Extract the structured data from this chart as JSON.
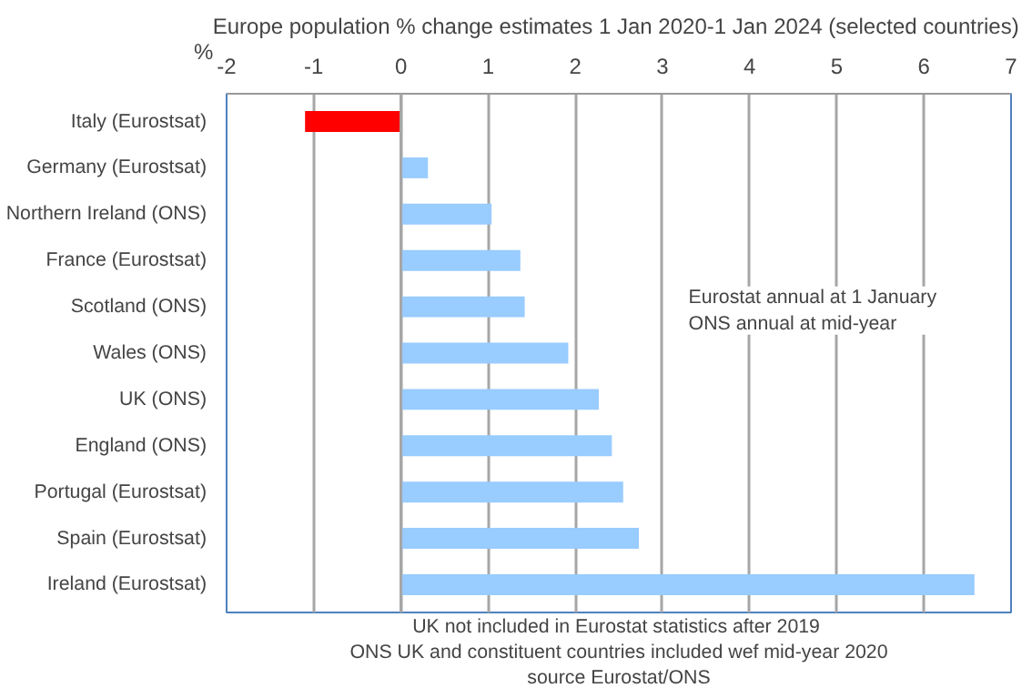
{
  "chart_data": {
    "type": "bar",
    "orientation": "horizontal",
    "title": "Europe population % change estimates 1 Jan 2020-1 Jan 2024  (selected countries)",
    "xlabel": "%",
    "categories": [
      "Italy (Eurostsat)",
      "Germany (Eurostsat)",
      "Northern Ireland (ONS)",
      "France (Eurostsat)",
      "Scotland (ONS)",
      "Wales (ONS)",
      "UK (ONS)",
      "England (ONS)",
      "Portugal (Eurostsat)",
      "Spain (Eurostsat)",
      "Ireland (Eurostsat)"
    ],
    "values": [
      -1.1,
      0.31,
      1.04,
      1.37,
      1.42,
      1.92,
      2.27,
      2.42,
      2.55,
      2.73,
      6.58
    ],
    "colors": [
      "#ff0000",
      "#99ccff",
      "#99ccff",
      "#99ccff",
      "#99ccff",
      "#99ccff",
      "#99ccff",
      "#99ccff",
      "#99ccff",
      "#99ccff",
      "#99ccff"
    ],
    "xlim": [
      -2,
      7
    ],
    "xticks": [
      -2,
      -1,
      0,
      1,
      2,
      3,
      4,
      5,
      6,
      7
    ],
    "grid": "x",
    "annotations": [
      "Eurostat annual at 1 January\nONS annual at mid-year",
      "UK not included in Eurostat  statistics after 2019",
      "ONS UK and constituent countries included wef mid-year 2020",
      "source Eurostat/ONS"
    ]
  }
}
